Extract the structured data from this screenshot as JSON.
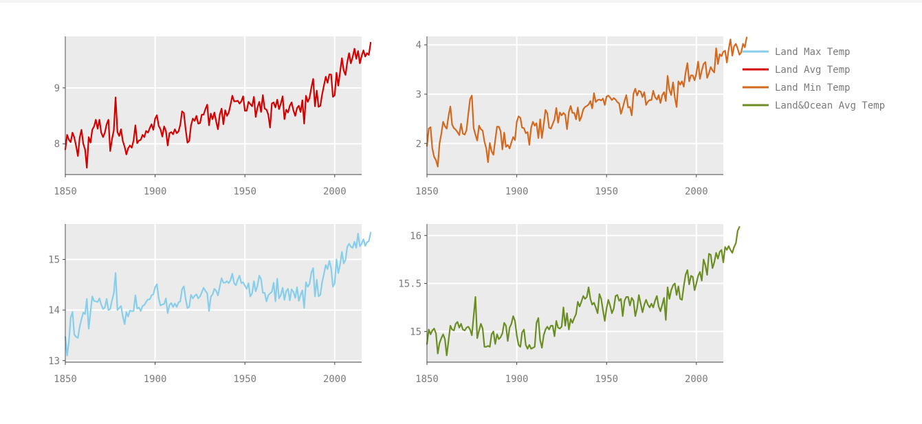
{
  "legend": [
    {
      "label": "Land Max Temp",
      "color": "#87ceeb"
    },
    {
      "label": "Land Avg Temp",
      "color": "#d40000"
    },
    {
      "label": "Land Min Temp",
      "color": "#d2691e"
    },
    {
      "label": "Land&Ocean Avg Temp",
      "color": "#6b8e23"
    }
  ],
  "chart_data": [
    {
      "type": "line",
      "series": [
        {
          "name": "Land Avg Temp",
          "color": "#d40000",
          "x_start": 1850,
          "values": [
            7.9,
            8.16,
            8.07,
            8.03,
            8.2,
            8.11,
            7.96,
            7.78,
            8.11,
            8.25,
            8.0,
            7.9,
            7.57,
            8.12,
            8.02,
            8.25,
            8.31,
            8.43,
            8.27,
            8.43,
            8.2,
            8.12,
            8.2,
            8.35,
            8.43,
            7.87,
            8.08,
            8.24,
            8.83,
            8.21,
            8.14,
            8.26,
            8.05,
            7.95,
            7.81,
            7.92,
            7.97,
            7.93,
            8.06,
            8.33,
            8.01,
            8.06,
            8.07,
            8.16,
            8.12,
            8.23,
            8.2,
            8.28,
            8.35,
            8.25,
            8.45,
            8.51,
            8.32,
            8.26,
            8.13,
            8.31,
            8.23,
            7.97,
            8.19,
            8.21,
            8.17,
            8.26,
            8.19,
            8.22,
            8.34,
            8.58,
            8.55,
            8.26,
            8.02,
            8.05,
            8.33,
            8.45,
            8.41,
            8.5,
            8.36,
            8.37,
            8.52,
            8.52,
            8.62,
            8.7,
            8.33,
            8.54,
            8.44,
            8.56,
            8.4,
            8.26,
            8.52,
            8.63,
            8.35,
            8.6,
            8.5,
            8.56,
            8.7,
            8.86,
            8.76,
            8.76,
            8.77,
            8.72,
            8.76,
            8.85,
            8.59,
            8.59,
            8.75,
            8.71,
            8.67,
            8.84,
            8.48,
            8.65,
            8.75,
            8.57,
            8.87,
            8.63,
            8.61,
            8.52,
            8.29,
            8.72,
            8.74,
            8.65,
            8.79,
            8.62,
            8.72,
            8.85,
            8.44,
            8.61,
            8.56,
            8.68,
            8.74,
            8.6,
            8.5,
            8.64,
            8.68,
            8.57,
            8.78,
            8.36,
            8.86,
            8.75,
            8.82,
            9.01,
            9.16,
            8.67,
            8.95,
            8.66,
            8.68,
            8.88,
            9.04,
            9.2,
            9.09,
            9.24,
            9.24,
            8.84,
            8.87,
            9.27,
            9.04,
            9.29,
            9.53,
            9.31,
            9.23,
            9.46,
            9.62,
            9.44,
            9.55,
            9.7,
            9.52,
            9.66,
            9.44,
            9.57,
            9.67,
            9.56,
            9.62,
            9.59,
            9.81
          ]
        }
      ],
      "xlim": [
        1850,
        2015
      ],
      "ylim": [
        7.45,
        9.92
      ],
      "xticks": [
        1850,
        1900,
        1950,
        2000
      ],
      "yticks": [
        8,
        9
      ],
      "ytick_labels": [
        "8",
        "9"
      ],
      "grid": true
    },
    {
      "type": "line",
      "series": [
        {
          "name": "Land Min Temp",
          "color": "#d2691e",
          "x_start": 1850,
          "values": [
            1.95,
            2.3,
            2.33,
            1.9,
            1.73,
            1.66,
            1.53,
            2.0,
            2.2,
            2.44,
            2.35,
            2.3,
            2.55,
            2.75,
            2.38,
            2.31,
            2.28,
            2.23,
            2.17,
            2.4,
            2.2,
            2.18,
            2.27,
            2.6,
            2.9,
            2.97,
            2.31,
            2.18,
            2.06,
            2.36,
            2.29,
            2.26,
            2.04,
            1.9,
            1.62,
            2.01,
            1.84,
            1.77,
            2.07,
            2.34,
            2.34,
            2.25,
            1.88,
            2.22,
            1.93,
            1.97,
            1.9,
            2.02,
            2.13,
            2.07,
            2.44,
            2.55,
            2.52,
            2.32,
            2.31,
            2.21,
            2.23,
            1.97,
            2.32,
            2.44,
            2.36,
            2.41,
            2.11,
            2.49,
            2.11,
            2.39,
            2.68,
            2.61,
            2.32,
            2.3,
            2.39,
            2.49,
            2.72,
            2.42,
            2.63,
            2.57,
            2.62,
            2.58,
            2.29,
            2.64,
            2.76,
            2.62,
            2.62,
            2.49,
            2.73,
            2.46,
            2.54,
            2.69,
            2.74,
            2.76,
            2.79,
            2.86,
            2.71,
            3.02,
            2.84,
            2.88,
            2.89,
            2.87,
            2.91,
            2.78,
            2.95,
            2.97,
            2.93,
            2.88,
            2.92,
            2.89,
            2.84,
            2.81,
            2.6,
            2.72,
            2.86,
            2.98,
            2.73,
            2.74,
            2.57,
            3.01,
            3.11,
            2.97,
            3.07,
            3.05,
            2.94,
            3.04,
            2.78,
            2.85,
            2.88,
            2.88,
            3.07,
            2.94,
            2.89,
            2.98,
            2.82,
            2.98,
            3.04,
            2.86,
            3.37,
            3.09,
            2.98,
            3.24,
            2.93,
            2.74,
            3.26,
            3.19,
            3.26,
            3.15,
            3.43,
            3.63,
            3.26,
            3.38,
            3.38,
            3.28,
            3.42,
            3.66,
            3.31,
            3.48,
            3.61,
            3.65,
            3.33,
            3.42,
            3.55,
            3.48,
            3.44,
            3.93,
            3.61,
            3.81,
            3.77,
            3.86,
            3.88,
            3.64,
            3.91,
            4.11,
            3.78,
            3.97,
            4.02,
            3.92,
            3.8,
            3.85,
            4.02,
            3.95,
            4.15
          ]
        }
      ],
      "xlim": [
        1850,
        2015
      ],
      "ylim": [
        1.37,
        4.17
      ],
      "xticks": [
        1850,
        1900,
        1950,
        2000
      ],
      "yticks": [
        2,
        3,
        4
      ],
      "ytick_labels": [
        "2",
        "3",
        "4"
      ],
      "grid": true
    },
    {
      "type": "line",
      "series": [
        {
          "name": "Land Max Temp",
          "color": "#87ceeb",
          "x_start": 1850,
          "values": [
            13.47,
            13.1,
            13.37,
            13.85,
            13.96,
            13.51,
            13.47,
            13.45,
            13.67,
            13.82,
            13.95,
            13.92,
            14.22,
            13.63,
            13.96,
            14.27,
            14.18,
            14.17,
            14.16,
            14.23,
            14.11,
            14.02,
            14.05,
            14.22,
            14.0,
            14.02,
            14.19,
            14.33,
            14.73,
            14.0,
            14.04,
            14.08,
            13.88,
            13.72,
            13.96,
            13.87,
            13.99,
            13.98,
            13.98,
            14.29,
            14.03,
            14.05,
            13.98,
            14.08,
            14.1,
            14.16,
            14.21,
            14.21,
            14.29,
            14.31,
            14.45,
            14.51,
            14.23,
            14.09,
            14.11,
            14.12,
            14.23,
            13.94,
            14.1,
            14.14,
            14.06,
            14.13,
            14.06,
            14.15,
            14.17,
            14.41,
            14.47,
            14.22,
            14.04,
            14.06,
            14.3,
            14.23,
            14.28,
            14.31,
            14.23,
            14.27,
            14.35,
            14.44,
            14.38,
            14.33,
            13.98,
            14.26,
            14.31,
            14.42,
            14.38,
            14.29,
            14.46,
            14.63,
            14.54,
            14.54,
            14.57,
            14.53,
            14.59,
            14.72,
            14.53,
            14.49,
            14.6,
            14.68,
            14.53,
            14.55,
            14.48,
            14.42,
            14.53,
            14.27,
            14.33,
            14.57,
            14.37,
            14.48,
            14.68,
            14.61,
            14.34,
            14.34,
            14.17,
            14.29,
            14.33,
            14.36,
            14.54,
            14.17,
            14.62,
            14.23,
            14.3,
            14.44,
            14.2,
            14.37,
            14.42,
            14.19,
            14.41,
            14.36,
            14.24,
            14.45,
            14.18,
            14.3,
            14.39,
            14.04,
            14.55,
            14.46,
            14.52,
            14.74,
            14.83,
            14.27,
            14.6,
            14.27,
            14.3,
            14.55,
            14.71,
            14.89,
            14.81,
            14.97,
            14.83,
            14.46,
            14.53,
            15.0,
            14.73,
            14.9,
            15.15,
            14.92,
            14.99,
            15.25,
            15.31,
            15.25,
            15.23,
            15.35,
            15.23,
            15.51,
            15.26,
            15.31,
            15.4,
            15.27,
            15.34,
            15.36,
            15.53
          ]
        }
      ],
      "xlim": [
        1850,
        2015
      ],
      "ylim": [
        12.97,
        15.7
      ],
      "xticks": [
        1850,
        1900,
        1950,
        2000
      ],
      "yticks": [
        13,
        14,
        15
      ],
      "ytick_labels": [
        "13",
        "14",
        "15"
      ],
      "grid": true
    },
    {
      "type": "line",
      "series": [
        {
          "name": "Land&Ocean Avg Temp",
          "color": "#6b8e23",
          "x_start": 1850,
          "values": [
            14.87,
            15.02,
            14.97,
            15.01,
            15.03,
            14.98,
            14.77,
            14.88,
            14.93,
            14.97,
            14.92,
            14.75,
            14.9,
            15.06,
            15.02,
            15.01,
            15.08,
            15.1,
            15.04,
            15.08,
            15.02,
            15.01,
            15.04,
            15.05,
            15.02,
            14.96,
            15.16,
            15.36,
            14.93,
            15.01,
            15.08,
            15.03,
            14.84,
            14.84,
            14.85,
            14.84,
            14.97,
            15.0,
            14.87,
            14.97,
            14.92,
            14.94,
            14.98,
            15.09,
            15.06,
            14.9,
            15.04,
            15.08,
            15.16,
            15.11,
            14.96,
            14.86,
            14.84,
            14.99,
            15.02,
            14.86,
            14.82,
            14.86,
            14.82,
            14.83,
            14.84,
            15.09,
            15.14,
            14.91,
            14.83,
            14.96,
            15.02,
            15.05,
            15.02,
            15.06,
            15.06,
            14.95,
            15.11,
            15.04,
            15.03,
            15.05,
            15.25,
            15.06,
            15.19,
            15.02,
            15.13,
            15.09,
            15.14,
            15.18,
            15.31,
            15.26,
            15.31,
            15.37,
            15.34,
            15.36,
            15.46,
            15.34,
            15.28,
            15.3,
            15.25,
            15.19,
            15.39,
            15.34,
            15.22,
            15.11,
            15.24,
            15.33,
            15.27,
            15.19,
            15.24,
            15.37,
            15.38,
            15.32,
            15.34,
            15.16,
            15.32,
            15.36,
            15.36,
            15.27,
            15.35,
            15.32,
            15.16,
            15.24,
            15.38,
            15.29,
            15.2,
            15.28,
            15.33,
            15.28,
            15.25,
            15.29,
            15.25,
            15.32,
            15.37,
            15.26,
            15.21,
            15.28,
            15.35,
            15.12,
            15.46,
            15.34,
            15.43,
            15.48,
            15.5,
            15.38,
            15.47,
            15.34,
            15.33,
            15.47,
            15.59,
            15.64,
            15.49,
            15.58,
            15.57,
            15.43,
            15.5,
            15.58,
            15.62,
            15.53,
            15.75,
            15.69,
            15.59,
            15.81,
            15.8,
            15.66,
            15.72,
            15.82,
            15.76,
            15.83,
            15.85,
            15.72,
            15.88,
            15.85,
            15.89,
            15.85,
            15.82,
            15.88,
            15.92,
            16.05,
            16.09
          ]
        }
      ],
      "xlim": [
        1850,
        2015
      ],
      "ylim": [
        14.68,
        16.12
      ],
      "xticks": [
        1850,
        1900,
        1950,
        2000
      ],
      "yticks": [
        15,
        15.5,
        16
      ],
      "ytick_labels": [
        "15",
        "15.5",
        "16"
      ],
      "grid": true
    }
  ]
}
